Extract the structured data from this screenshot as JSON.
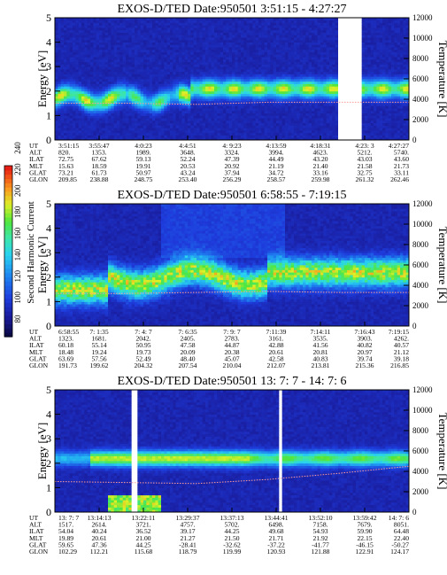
{
  "figure": {
    "colorbar": {
      "label": "Second Harmonic Current",
      "ticks": [
        "80",
        "100",
        "120",
        "140",
        "160",
        "180",
        "200",
        "220",
        "240"
      ]
    }
  },
  "chart_data": [
    {
      "type": "heatmap",
      "title": "EXOS-D/TED   Date:950501   3:51:15 - 4:27:27",
      "ylabel": "Energy [eV]",
      "y2label": "Temperature [K]",
      "ylim": [
        0,
        5
      ],
      "y2lim": [
        0,
        12000
      ],
      "yticks": [
        "0",
        "1",
        "2",
        "3",
        "4",
        "5"
      ],
      "y2ticks": [
        "0",
        "2000",
        "4000",
        "6000",
        "8000",
        "10000",
        "12000"
      ],
      "data_gaps": [
        [
          0.8,
          0.87
        ]
      ],
      "temperature_trace_K": [
        3600,
        3600,
        3500,
        3700,
        3700,
        3700
      ],
      "table": {
        "row_labels": [
          "UT",
          "ALT",
          "ILAT",
          "MLT",
          "GLAT",
          "GLON"
        ],
        "columns": [
          [
            "3:51:15",
            "820.",
            "72.75",
            "15.63",
            "73.21",
            "209.85"
          ],
          [
            "3:55:47",
            "1353.",
            "67.62",
            "18.59",
            "61.73",
            "238.88"
          ],
          [
            "4:0:23",
            "1989.",
            "59.13",
            "19.91",
            "50.97",
            "248.75"
          ],
          [
            "4:4:51",
            "3648.",
            "52.24",
            "20.53",
            "43.24",
            "253.40"
          ],
          [
            "4: 9:23",
            "3324.",
            "47.39",
            "20.92",
            "37.94",
            "256.29"
          ],
          [
            "4:13:59",
            "3994.",
            "44.49",
            "21.19",
            "34.72",
            "258.57"
          ],
          [
            "4:18:31",
            "4623.",
            "43.20",
            "21.40",
            "33.16",
            "259.98"
          ],
          [
            "4:23: 3",
            "5212.",
            "43.03",
            "21.58",
            "32.75",
            "261.32"
          ],
          [
            "4:27:27",
            "5740.",
            "43.60",
            "21.73",
            "33.11",
            "262.46"
          ]
        ]
      }
    },
    {
      "type": "heatmap",
      "title": "EXOS-D/TED   Date:950501   6:58:55 - 7:19:15",
      "ylabel": "Energy [eV]",
      "y2label": "Temperature [K]",
      "ylim": [
        0,
        5
      ],
      "y2lim": [
        0,
        12000
      ],
      "yticks": [
        "0",
        "1",
        "2",
        "3",
        "4",
        "5"
      ],
      "y2ticks": [
        "0",
        "2000",
        "4000",
        "6000",
        "8000",
        "10000",
        "12000"
      ],
      "data_gaps": [],
      "temperature_trace_K": [
        3200,
        3200,
        3300,
        3400,
        3300,
        3300
      ],
      "table": {
        "row_labels": [
          "UT",
          "ALT",
          "ILAT",
          "MLT",
          "GLAT",
          "GLON"
        ],
        "columns": [
          [
            "6:58:55",
            "1323.",
            "60.18",
            "18.48",
            "63.69",
            "191.73"
          ],
          [
            "7: 1:35",
            "1681.",
            "55.14",
            "19.24",
            "57.56",
            "199.62"
          ],
          [
            "7: 4: 7",
            "2042.",
            "50.95",
            "19.73",
            "52.49",
            "204.32"
          ],
          [
            "7: 6:35",
            "2405.",
            "47.58",
            "20.09",
            "48.40",
            "207.54"
          ],
          [
            "7: 9: 7",
            "2783.",
            "44.87",
            "20.38",
            "45.07",
            "210.04"
          ],
          [
            "7:11:39",
            "3161.",
            "42.88",
            "20.61",
            "42.58",
            "212.07"
          ],
          [
            "7:14:11",
            "3535.",
            "41.56",
            "20.81",
            "40.83",
            "213.81"
          ],
          [
            "7:16:43",
            "3903.",
            "40.82",
            "20.97",
            "39.74",
            "215.36"
          ],
          [
            "7:19:15",
            "4262.",
            "40.57",
            "21.12",
            "39.18",
            "216.85"
          ]
        ]
      }
    },
    {
      "type": "heatmap",
      "title": "EXOS-D/TED   Date:950501   13: 7: 7 - 14: 7: 6",
      "ylabel": "Energy [eV]",
      "y2label": "Temperature [K]",
      "ylim": [
        0,
        5
      ],
      "y2lim": [
        0,
        12000
      ],
      "yticks": [
        "0",
        "1",
        "2",
        "3",
        "4",
        "5"
      ],
      "y2ticks": [
        "0",
        "2000",
        "4000",
        "6000",
        "8000",
        "10000",
        "12000"
      ],
      "data_gaps": [
        [
          0.22,
          0.232
        ],
        [
          0.635,
          0.645
        ]
      ],
      "temperature_trace_K": [
        3000,
        2900,
        2800,
        3200,
        3800,
        4500
      ],
      "table": {
        "row_labels": [
          "UT",
          "ALT",
          "ILAT",
          "MLT",
          "GLAT",
          "GLON"
        ],
        "columns": [
          [
            "13: 7: 7",
            "1517.",
            "54.04",
            "19.89",
            "59.65",
            "102.29"
          ],
          [
            "13:14:13",
            "2614.",
            "40.24",
            "20.61",
            "47.36",
            "112.21"
          ],
          [
            "13:22:11",
            "3721.",
            "36.52",
            "21.00",
            "44.25",
            "115.68"
          ],
          [
            "13:29:37",
            "4757.",
            "39.17",
            "21.27",
            "-28.41",
            "118.79"
          ],
          [
            "13:37:13",
            "5702.",
            "44.25",
            "21.50",
            "-32.62",
            "119.99"
          ],
          [
            "13:44:41",
            "6498.",
            "49.68",
            "21.71",
            "-37.22",
            "120.93"
          ],
          [
            "13:52:10",
            "7158.",
            "54.93",
            "21.92",
            "-41.77",
            "121.88"
          ],
          [
            "13:59:42",
            "7679.",
            "59.90",
            "22.15",
            "-46.15",
            "122.91"
          ],
          [
            "14: 7: 6",
            "8051.",
            "64.48",
            "22.40",
            "-50.27",
            "124.17"
          ]
        ]
      }
    }
  ]
}
